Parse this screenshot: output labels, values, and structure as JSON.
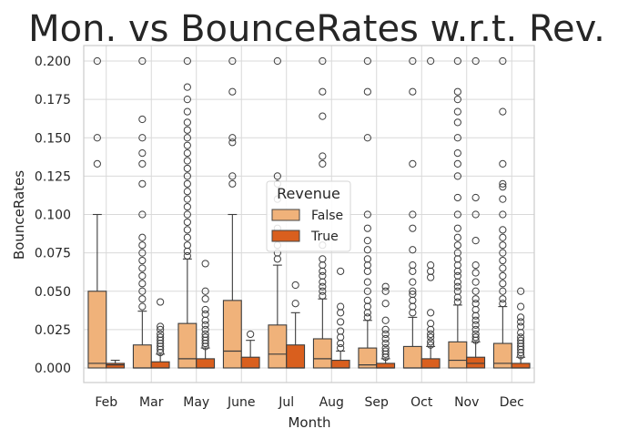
{
  "chart_data": {
    "type": "box",
    "title": "Mon. vs BounceRates w.r.t. Rev.",
    "xlabel": "Month",
    "ylabel": "BounceRates",
    "ylim": [
      -0.008,
      0.208
    ],
    "y_ticks": [
      "0.000",
      "0.025",
      "0.050",
      "0.075",
      "0.100",
      "0.125",
      "0.150",
      "0.175",
      "0.200"
    ],
    "grid": true,
    "categories": [
      "Feb",
      "Mar",
      "May",
      "June",
      "Jul",
      "Aug",
      "Sep",
      "Oct",
      "Nov",
      "Dec"
    ],
    "legend": {
      "title": "Revenue",
      "position": "center",
      "entries": [
        {
          "name": "False",
          "color": "#f0b27a"
        },
        {
          "name": "True",
          "color": "#d95f1e"
        }
      ]
    },
    "series": [
      {
        "name": "False",
        "color": "#f0b27a",
        "boxes": [
          {
            "q1": 0.0,
            "median": 0.003,
            "q3": 0.05,
            "whisker_low": 0.0,
            "whisker_high": 0.1,
            "outliers": [
              0.133,
              0.15,
              0.2
            ]
          },
          {
            "q1": 0.0,
            "median": 0.0,
            "q3": 0.015,
            "whisker_low": 0.0,
            "whisker_high": 0.037,
            "outliers": [
              0.04,
              0.045,
              0.05,
              0.055,
              0.06,
              0.065,
              0.07,
              0.075,
              0.08,
              0.085,
              0.1,
              0.12,
              0.133,
              0.14,
              0.15,
              0.162,
              0.2
            ]
          },
          {
            "q1": 0.0,
            "median": 0.006,
            "q3": 0.029,
            "whisker_low": 0.0,
            "whisker_high": 0.071,
            "outliers": [
              0.073,
              0.076,
              0.08,
              0.085,
              0.09,
              0.095,
              0.1,
              0.105,
              0.11,
              0.115,
              0.12,
              0.125,
              0.13,
              0.135,
              0.14,
              0.145,
              0.15,
              0.155,
              0.16,
              0.167,
              0.175,
              0.183,
              0.2
            ]
          },
          {
            "q1": 0.0,
            "median": 0.011,
            "q3": 0.044,
            "whisker_low": 0.0,
            "whisker_high": 0.1,
            "outliers": [
              0.12,
              0.125,
              0.147,
              0.15,
              0.18,
              0.2
            ]
          },
          {
            "q1": 0.0,
            "median": 0.009,
            "q3": 0.028,
            "whisker_low": 0.0,
            "whisker_high": 0.067,
            "outliers": [
              0.071,
              0.075,
              0.08,
              0.085,
              0.091,
              0.1,
              0.11,
              0.12,
              0.125,
              0.2
            ]
          },
          {
            "q1": 0.0,
            "median": 0.006,
            "q3": 0.019,
            "whisker_low": 0.0,
            "whisker_high": 0.045,
            "outliers": [
              0.047,
              0.05,
              0.053,
              0.056,
              0.06,
              0.063,
              0.067,
              0.071,
              0.08,
              0.133,
              0.138,
              0.164,
              0.18,
              0.2
            ]
          },
          {
            "q1": 0.0,
            "median": 0.002,
            "q3": 0.013,
            "whisker_low": 0.0,
            "whisker_high": 0.031,
            "outliers": [
              0.033,
              0.036,
              0.04,
              0.044,
              0.05,
              0.056,
              0.063,
              0.067,
              0.071,
              0.077,
              0.083,
              0.091,
              0.1,
              0.15,
              0.18,
              0.2
            ]
          },
          {
            "q1": 0.0,
            "median": 0.0,
            "q3": 0.014,
            "whisker_low": 0.0,
            "whisker_high": 0.033,
            "outliers": [
              0.036,
              0.04,
              0.044,
              0.048,
              0.05,
              0.056,
              0.063,
              0.067,
              0.077,
              0.091,
              0.1,
              0.133,
              0.18,
              0.2
            ]
          },
          {
            "q1": 0.0,
            "median": 0.005,
            "q3": 0.017,
            "whisker_low": 0.0,
            "whisker_high": 0.041,
            "outliers": [
              0.043,
              0.046,
              0.05,
              0.053,
              0.056,
              0.06,
              0.063,
              0.067,
              0.071,
              0.075,
              0.08,
              0.085,
              0.091,
              0.1,
              0.111,
              0.125,
              0.133,
              0.14,
              0.15,
              0.16,
              0.167,
              0.175,
              0.18,
              0.2
            ]
          },
          {
            "q1": 0.0,
            "median": 0.003,
            "q3": 0.016,
            "whisker_low": 0.0,
            "whisker_high": 0.04,
            "outliers": [
              0.042,
              0.045,
              0.05,
              0.055,
              0.06,
              0.065,
              0.07,
              0.075,
              0.08,
              0.085,
              0.09,
              0.1,
              0.11,
              0.118,
              0.12,
              0.133,
              0.167,
              0.2
            ]
          }
        ]
      },
      {
        "name": "True",
        "color": "#d95f1e",
        "boxes": [
          {
            "q1": 0.0,
            "median": 0.002,
            "q3": 0.003,
            "whisker_low": 0.0,
            "whisker_high": 0.005,
            "outliers": []
          },
          {
            "q1": 0.0,
            "median": 0.0,
            "q3": 0.004,
            "whisker_low": 0.0,
            "whisker_high": 0.009,
            "outliers": [
              0.01,
              0.012,
              0.014,
              0.016,
              0.018,
              0.02,
              0.022,
              0.025,
              0.027,
              0.043
            ]
          },
          {
            "q1": 0.0,
            "median": 0.0,
            "q3": 0.006,
            "whisker_low": 0.0,
            "whisker_high": 0.013,
            "outliers": [
              0.014,
              0.016,
              0.018,
              0.02,
              0.022,
              0.025,
              0.028,
              0.031,
              0.035,
              0.038,
              0.045,
              0.05,
              0.068
            ]
          },
          {
            "q1": 0.0,
            "median": 0.0,
            "q3": 0.007,
            "whisker_low": 0.0,
            "whisker_high": 0.018,
            "outliers": [
              0.022
            ]
          },
          {
            "q1": 0.0,
            "median": 0.0,
            "q3": 0.015,
            "whisker_low": 0.0,
            "whisker_high": 0.036,
            "outliers": [
              0.042,
              0.054
            ]
          },
          {
            "q1": 0.0,
            "median": 0.0,
            "q3": 0.005,
            "whisker_low": 0.0,
            "whisker_high": 0.011,
            "outliers": [
              0.013,
              0.016,
              0.02,
              0.024,
              0.03,
              0.036,
              0.04,
              0.063
            ]
          },
          {
            "q1": 0.0,
            "median": 0.0,
            "q3": 0.003,
            "whisker_low": 0.0,
            "whisker_high": 0.006,
            "outliers": [
              0.007,
              0.009,
              0.011,
              0.013,
              0.016,
              0.019,
              0.022,
              0.025,
              0.031,
              0.042,
              0.05,
              0.053
            ]
          },
          {
            "q1": 0.0,
            "median": 0.0,
            "q3": 0.006,
            "whisker_low": 0.0,
            "whisker_high": 0.014,
            "outliers": [
              0.015,
              0.017,
              0.02,
              0.022,
              0.025,
              0.029,
              0.036,
              0.059,
              0.063,
              0.067,
              0.2
            ]
          },
          {
            "q1": 0.0,
            "median": 0.003,
            "q3": 0.007,
            "whisker_low": 0.0,
            "whisker_high": 0.017,
            "outliers": [
              0.018,
              0.02,
              0.022,
              0.025,
              0.028,
              0.031,
              0.034,
              0.038,
              0.042,
              0.045,
              0.05,
              0.056,
              0.062,
              0.067,
              0.083,
              0.1,
              0.111,
              0.2
            ]
          },
          {
            "q1": 0.0,
            "median": 0.0,
            "q3": 0.003,
            "whisker_low": 0.0,
            "whisker_high": 0.007,
            "outliers": [
              0.008,
              0.01,
              0.012,
              0.014,
              0.016,
              0.018,
              0.02,
              0.023,
              0.027,
              0.03,
              0.033,
              0.04,
              0.05
            ]
          }
        ]
      }
    ]
  }
}
